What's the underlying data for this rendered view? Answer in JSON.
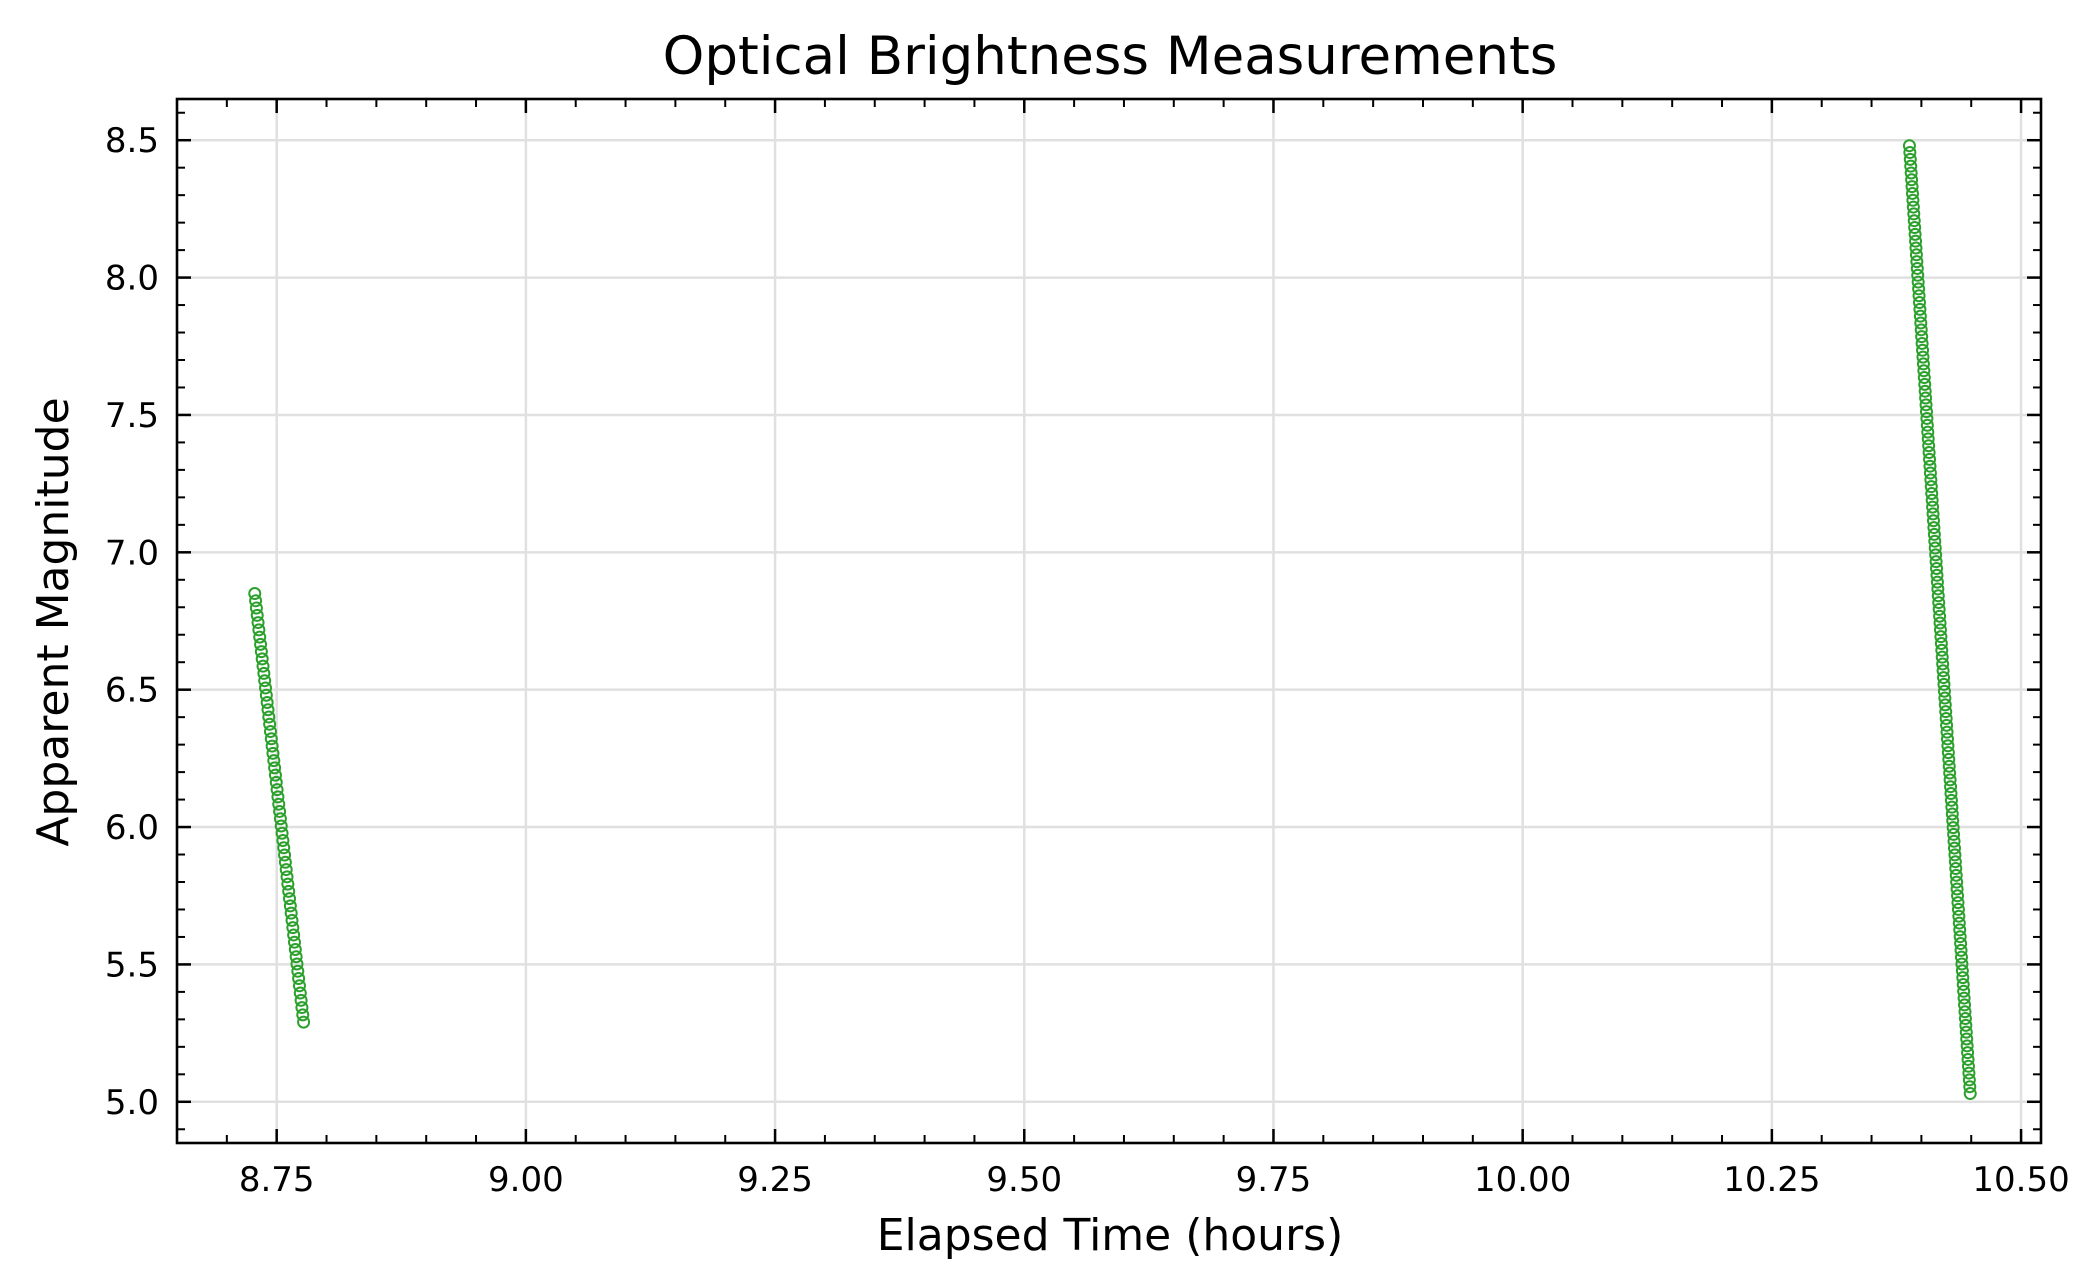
{
  "chart_data": {
    "type": "scatter",
    "title": "Optical Brightness Measurements",
    "xlabel": "Elapsed Time (hours)",
    "ylabel": "Apparent Magnitude",
    "xlim": [
      8.65,
      10.52
    ],
    "ylim": [
      4.85,
      8.65
    ],
    "xticks": [
      8.75,
      9.0,
      9.25,
      9.5,
      9.75,
      10.0,
      10.25,
      10.5
    ],
    "xtick_labels": [
      "8.75",
      "9.00",
      "9.25",
      "9.50",
      "9.75",
      "10.00",
      "10.25",
      "10.50"
    ],
    "yticks": [
      5.0,
      5.5,
      6.0,
      6.5,
      7.0,
      7.5,
      8.0,
      8.5
    ],
    "ytick_labels": [
      "5.0",
      "5.5",
      "6.0",
      "6.5",
      "7.0",
      "7.5",
      "8.0",
      "8.5"
    ],
    "grid": true,
    "marker": "open-circle",
    "color": "#2ca02c",
    "series": [
      {
        "segments": [
          {
            "x_start": 8.728,
            "x_end": 8.777,
            "y_start": 6.85,
            "y_end": 5.29,
            "points": 60
          },
          {
            "x_start": 10.388,
            "x_end": 10.449,
            "y_start": 8.48,
            "y_end": 5.03,
            "points": 140
          }
        ]
      }
    ]
  }
}
